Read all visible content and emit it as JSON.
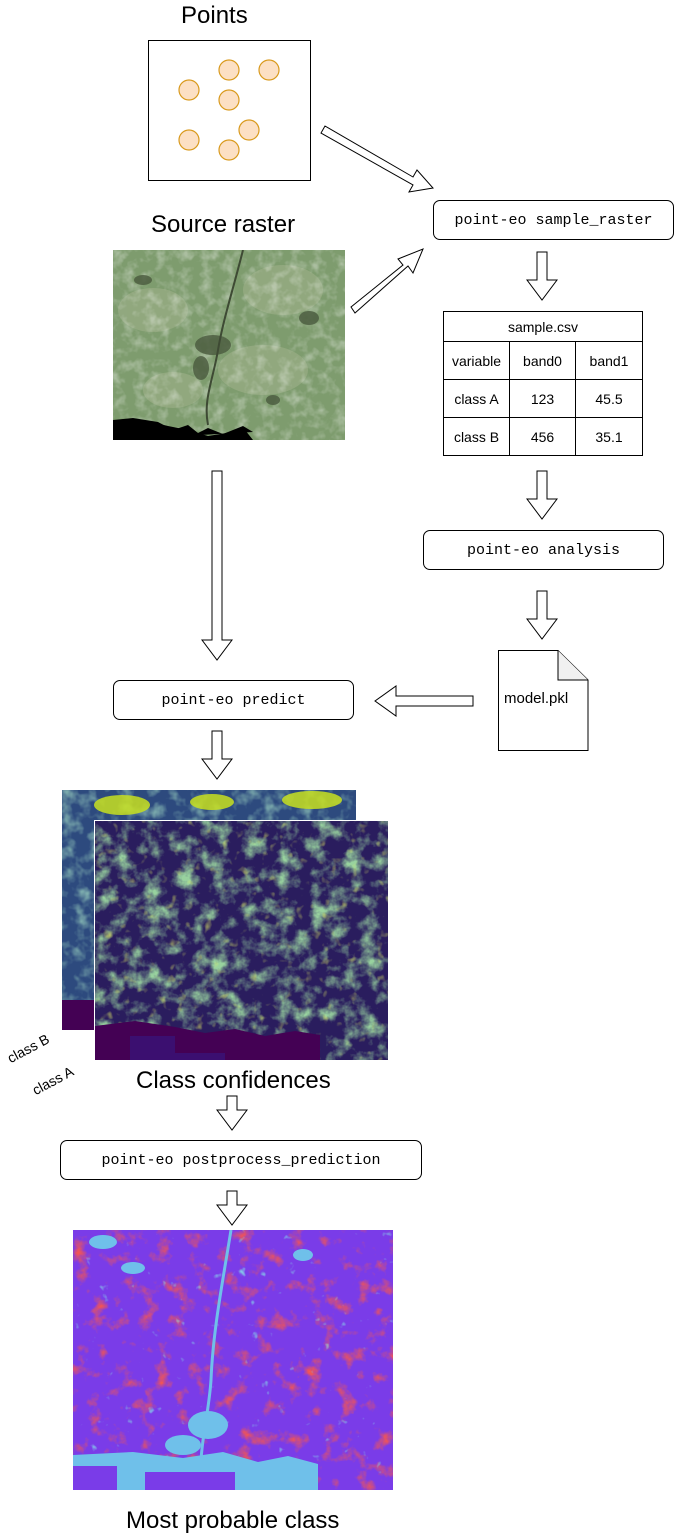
{
  "titles": {
    "points": "Points",
    "source_raster": "Source raster",
    "class_confidences": "Class confidences",
    "most_probable_class": "Most probable class"
  },
  "commands": {
    "sample_raster": "point-eo sample_raster",
    "analysis": "point-eo analysis",
    "predict": "point-eo predict",
    "postprocess": "point-eo postprocess_prediction"
  },
  "csv_table": {
    "title": "sample.csv",
    "columns": [
      "variable",
      "band0",
      "band1"
    ],
    "rows": [
      [
        "class A",
        "123",
        "45.5"
      ],
      [
        "class B",
        "456",
        "35.1"
      ]
    ]
  },
  "model_file": "model.pkl",
  "layer_labels": {
    "class_b": "class B",
    "class_a": "class A"
  },
  "colors": {
    "point_fill": "#fce0c4",
    "point_stroke": "#d99a1e",
    "satellite_green": "#7e9c6e",
    "viridis_purple": "#440154",
    "viridis_green": "#5ec962",
    "viridis_yellow": "#c8e020",
    "class_purple": "#7a3ce8",
    "class_red": "#e01818",
    "class_cyan": "#3fe0d0"
  }
}
